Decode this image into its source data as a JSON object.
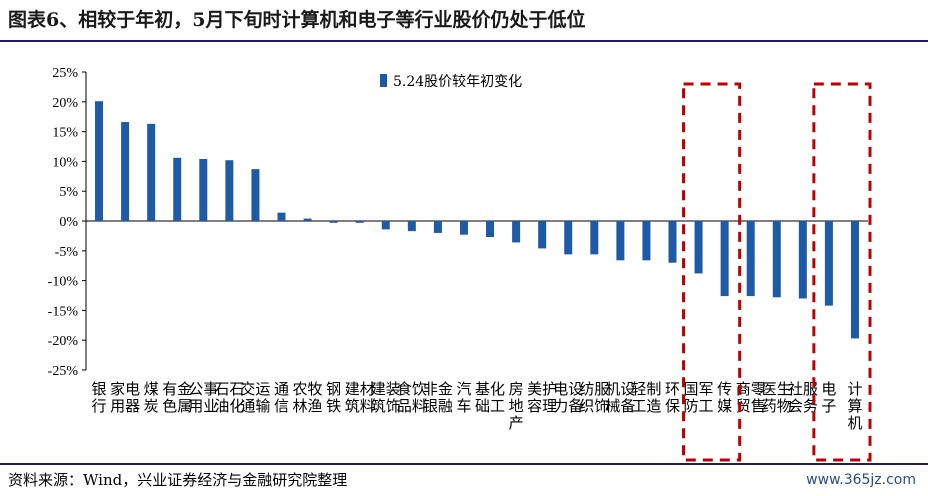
{
  "title": "图表6、相较于年初，5月下旬时计算机和电子等行业股价仍处于低位",
  "source": "资料来源：Wind，兴业证券经济与金融研究院整理",
  "site": "www.365jz.com",
  "colors": {
    "bar": "#1f5aa6",
    "highlight": "#c00000",
    "rule": "#1f1f5f"
  },
  "chart_data": {
    "type": "bar",
    "categories": [
      "银行",
      "家用电器",
      "煤炭",
      "有色金属",
      "公用事业",
      "石油石化",
      "交通运输",
      "通信",
      "农林牧渔",
      "钢铁",
      "建筑材料",
      "建筑装饰",
      "食品饮料",
      "非银金融",
      "汽车",
      "基础化工",
      "房地产",
      "美容护理",
      "电力设备",
      "纺织服饰",
      "机械设备",
      "轻工制造",
      "环保",
      "国防军工",
      "传媒",
      "商贸零售",
      "医药生物",
      "社会服务",
      "电子",
      "计算机"
    ],
    "series": [
      {
        "name": "5.24股价较年初变化",
        "values": [
          20.1,
          16.6,
          16.3,
          10.6,
          10.4,
          10.2,
          8.7,
          1.4,
          0.4,
          -0.3,
          -0.3,
          -1.4,
          -1.7,
          -2.0,
          -2.3,
          -2.7,
          -3.6,
          -4.6,
          -5.6,
          -5.6,
          -6.6,
          -6.6,
          -7.0,
          -8.8,
          -12.6,
          -12.6,
          -12.8,
          -13.0,
          -14.2,
          -19.7
        ]
      }
    ],
    "y_ticks": [
      "25%",
      "20%",
      "15%",
      "10%",
      "5%",
      "0%",
      "-5%",
      "-10%",
      "-15%",
      "-20%",
      "-25%"
    ],
    "ylim": [
      -25,
      25
    ],
    "legend_position": "top-center",
    "highlight_groups": [
      [
        "国防军工",
        "传媒"
      ],
      [
        "电子",
        "计算机"
      ]
    ],
    "grid": false
  }
}
